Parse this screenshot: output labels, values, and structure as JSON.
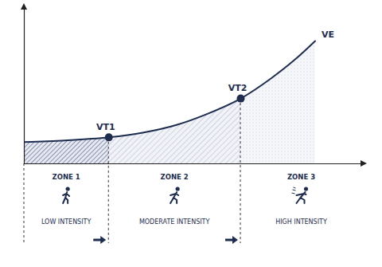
{
  "chart_data": {
    "type": "line",
    "x": [
      0,
      12,
      25,
      35,
      45,
      54,
      64,
      73,
      80,
      86
    ],
    "series": [
      {
        "name": "VE",
        "color": "#1e2d4f",
        "values": [
          14,
          15,
          17,
          20,
          25,
          32,
          42,
          55,
          67,
          79
        ]
      }
    ],
    "xlim": [
      0,
      100
    ],
    "ylim": [
      0,
      100
    ],
    "xticks": [],
    "yticks": [],
    "tick_labels": false,
    "grid": false,
    "thresholds": [
      {
        "label": "VT1",
        "x": 25,
        "y": 17
      },
      {
        "label": "VT2",
        "x": 64,
        "y": 42
      }
    ],
    "zones": [
      {
        "label": "ZONE 1",
        "intensity": "LOW INTENSITY",
        "start": 0,
        "end": 25
      },
      {
        "label": "ZONE 2",
        "intensity": "MODERATE INTENSITY",
        "start": 25,
        "end": 64
      },
      {
        "label": "ZONE 3",
        "intensity": "HIGH INTENSITY",
        "start": 64,
        "end": 100
      }
    ]
  }
}
